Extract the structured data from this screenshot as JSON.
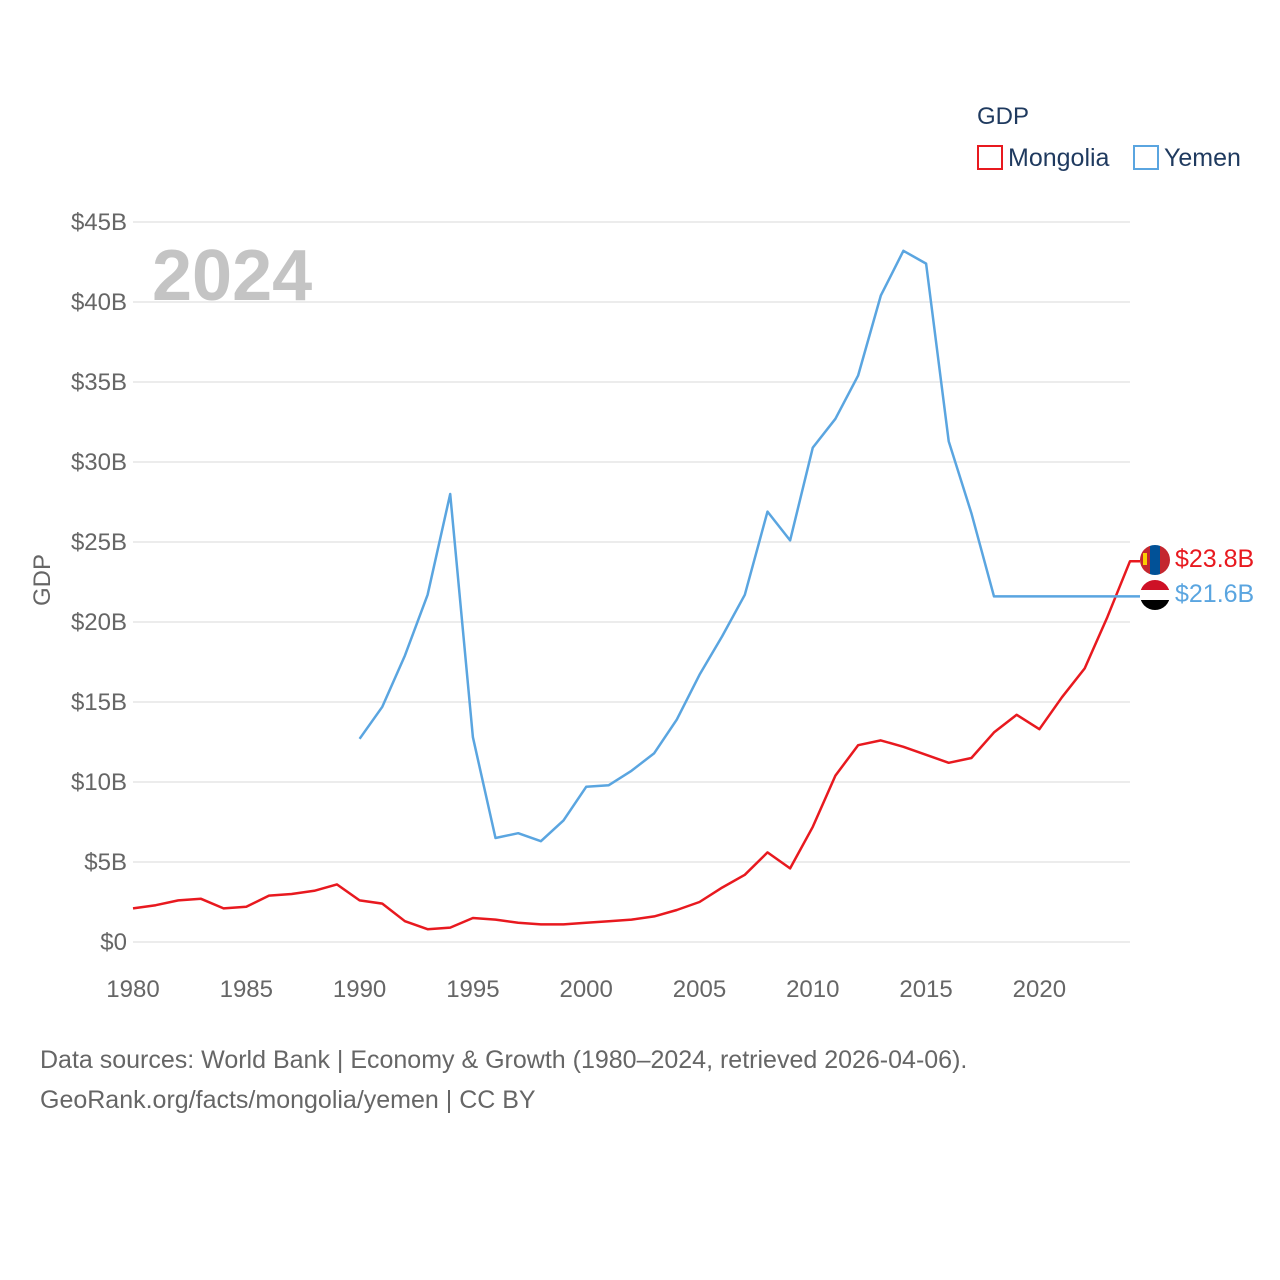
{
  "chart_data": {
    "type": "line",
    "title": "GDP",
    "ylabel": "GDP",
    "xlabel": "",
    "year_label": "2024",
    "xlim": [
      1980,
      2024
    ],
    "ylim": [
      0,
      45
    ],
    "x_ticks": [
      1980,
      1985,
      1990,
      1995,
      2000,
      2005,
      2010,
      2015,
      2020
    ],
    "y_ticks": [
      {
        "value": 0,
        "label": "$0"
      },
      {
        "value": 5,
        "label": "$5B"
      },
      {
        "value": 10,
        "label": "$10B"
      },
      {
        "value": 15,
        "label": "$15B"
      },
      {
        "value": 20,
        "label": "$20B"
      },
      {
        "value": 25,
        "label": "$25B"
      },
      {
        "value": 30,
        "label": "$30B"
      },
      {
        "value": 35,
        "label": "$35B"
      },
      {
        "value": 40,
        "label": "$40B"
      },
      {
        "value": 45,
        "label": "$45B"
      }
    ],
    "legend": {
      "title": "GDP",
      "position": "top-right"
    },
    "series": [
      {
        "name": "Mongolia",
        "color": "#e8191f",
        "end_label": "$23.8B",
        "flag": "mongolia-flag-icon",
        "x": [
          1980,
          1981,
          1982,
          1983,
          1984,
          1985,
          1986,
          1987,
          1988,
          1989,
          1990,
          1991,
          1992,
          1993,
          1994,
          1995,
          1996,
          1997,
          1998,
          1999,
          2000,
          2001,
          2002,
          2003,
          2004,
          2005,
          2006,
          2007,
          2008,
          2009,
          2010,
          2011,
          2012,
          2013,
          2014,
          2015,
          2016,
          2017,
          2018,
          2019,
          2020,
          2021,
          2022,
          2023,
          2024
        ],
        "values": [
          2.1,
          2.3,
          2.6,
          2.7,
          2.1,
          2.2,
          2.9,
          3.0,
          3.2,
          3.6,
          2.6,
          2.4,
          1.3,
          0.8,
          0.9,
          1.5,
          1.4,
          1.2,
          1.1,
          1.1,
          1.2,
          1.3,
          1.4,
          1.6,
          2.0,
          2.5,
          3.4,
          4.2,
          5.6,
          4.6,
          7.2,
          10.4,
          12.3,
          12.6,
          12.2,
          11.7,
          11.2,
          11.5,
          13.1,
          14.2,
          13.3,
          15.3,
          17.1,
          20.3,
          23.8
        ]
      },
      {
        "name": "Yemen",
        "color": "#5aa5e0",
        "end_label": "$21.6B",
        "flag": "yemen-flag-icon",
        "x": [
          1990,
          1991,
          1992,
          1993,
          1994,
          1995,
          1996,
          1997,
          1998,
          1999,
          2000,
          2001,
          2002,
          2003,
          2004,
          2005,
          2006,
          2007,
          2008,
          2009,
          2010,
          2011,
          2012,
          2013,
          2014,
          2015,
          2016,
          2017,
          2018,
          2019,
          2020,
          2021,
          2022,
          2023,
          2024
        ],
        "values": [
          12.7,
          14.7,
          17.9,
          21.7,
          28.0,
          12.8,
          6.5,
          6.8,
          6.3,
          7.6,
          9.7,
          9.8,
          10.7,
          11.8,
          13.9,
          16.7,
          19.1,
          21.7,
          26.9,
          25.1,
          30.9,
          32.7,
          35.4,
          40.4,
          43.2,
          42.4,
          31.3,
          26.8,
          21.6,
          21.6,
          21.6,
          21.6,
          21.6,
          21.6,
          21.6
        ]
      }
    ]
  },
  "footer": {
    "line1": "Data sources: World Bank | Economy & Growth (1980–2024, retrieved 2026-04-06).",
    "line2": "GeoRank.org/facts/mongolia/yemen | CC BY"
  }
}
